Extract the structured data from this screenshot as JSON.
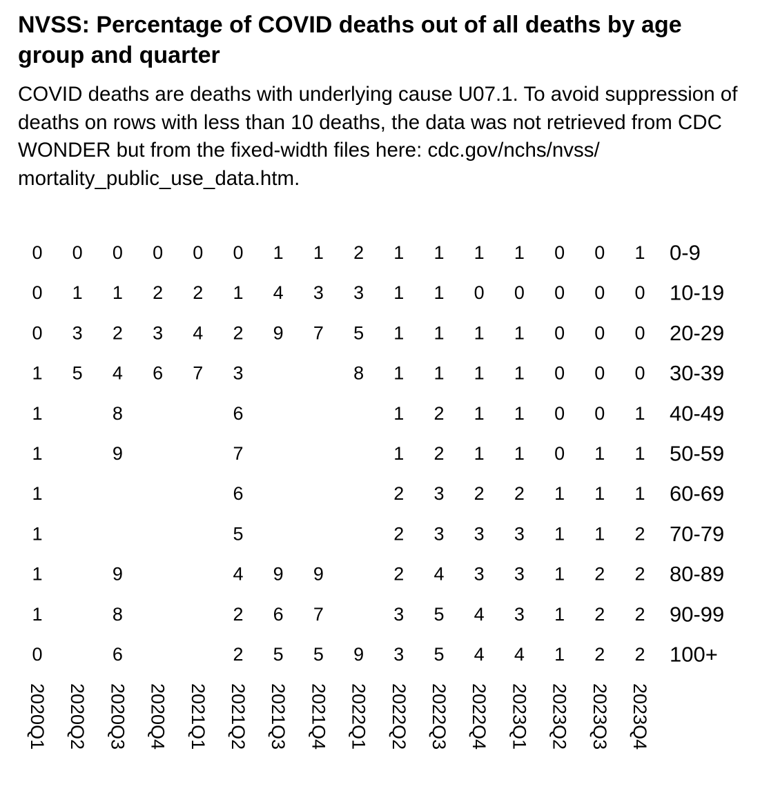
{
  "chart_data": {
    "type": "heatmap",
    "title": "NVSS: Percentage of COVID deaths out of all deaths by age group and quarter",
    "subtitle": "COVID deaths are deaths with underlying cause U07.1. To avoid suppression of deaths on rows with less than 10 deaths, the data was not retrieved from CDC WONDER but from the fixed-width files here: cdc.gov/nchs/nvss/ mortality_public_use_data.htm.",
    "x": [
      "2020Q1",
      "2020Q2",
      "2020Q3",
      "2020Q4",
      "2021Q1",
      "2021Q2",
      "2021Q3",
      "2021Q4",
      "2022Q1",
      "2022Q2",
      "2022Q3",
      "2022Q4",
      "2023Q1",
      "2023Q2",
      "2023Q3",
      "2023Q4"
    ],
    "y": [
      "0-9",
      "10-19",
      "20-29",
      "30-39",
      "40-49",
      "50-59",
      "60-69",
      "70-79",
      "80-89",
      "90-99",
      "100+"
    ],
    "values": [
      [
        0,
        0,
        0,
        0,
        0,
        0,
        1,
        1,
        2,
        1,
        1,
        1,
        1,
        0,
        0,
        1
      ],
      [
        0,
        1,
        1,
        2,
        2,
        1,
        4,
        3,
        3,
        1,
        1,
        0,
        0,
        0,
        0,
        0
      ],
      [
        0,
        3,
        2,
        3,
        4,
        2,
        9,
        7,
        5,
        1,
        1,
        1,
        1,
        0,
        0,
        0
      ],
      [
        1,
        5,
        4,
        6,
        7,
        3,
        null,
        null,
        8,
        1,
        1,
        1,
        1,
        0,
        0,
        0
      ],
      [
        1,
        null,
        8,
        null,
        null,
        6,
        null,
        null,
        null,
        1,
        2,
        1,
        1,
        0,
        0,
        1
      ],
      [
        1,
        null,
        9,
        null,
        null,
        7,
        null,
        null,
        null,
        1,
        2,
        1,
        1,
        0,
        1,
        1
      ],
      [
        1,
        null,
        null,
        null,
        null,
        6,
        null,
        null,
        null,
        2,
        3,
        2,
        2,
        1,
        1,
        1
      ],
      [
        1,
        null,
        null,
        null,
        null,
        5,
        null,
        null,
        null,
        2,
        3,
        3,
        3,
        1,
        1,
        2
      ],
      [
        1,
        null,
        9,
        null,
        null,
        4,
        9,
        9,
        null,
        2,
        4,
        3,
        3,
        1,
        2,
        2
      ],
      [
        1,
        null,
        8,
        null,
        null,
        2,
        6,
        7,
        null,
        3,
        5,
        4,
        3,
        1,
        2,
        2
      ],
      [
        0,
        null,
        6,
        null,
        null,
        2,
        5,
        5,
        9,
        3,
        5,
        4,
        4,
        1,
        2,
        2
      ]
    ]
  }
}
